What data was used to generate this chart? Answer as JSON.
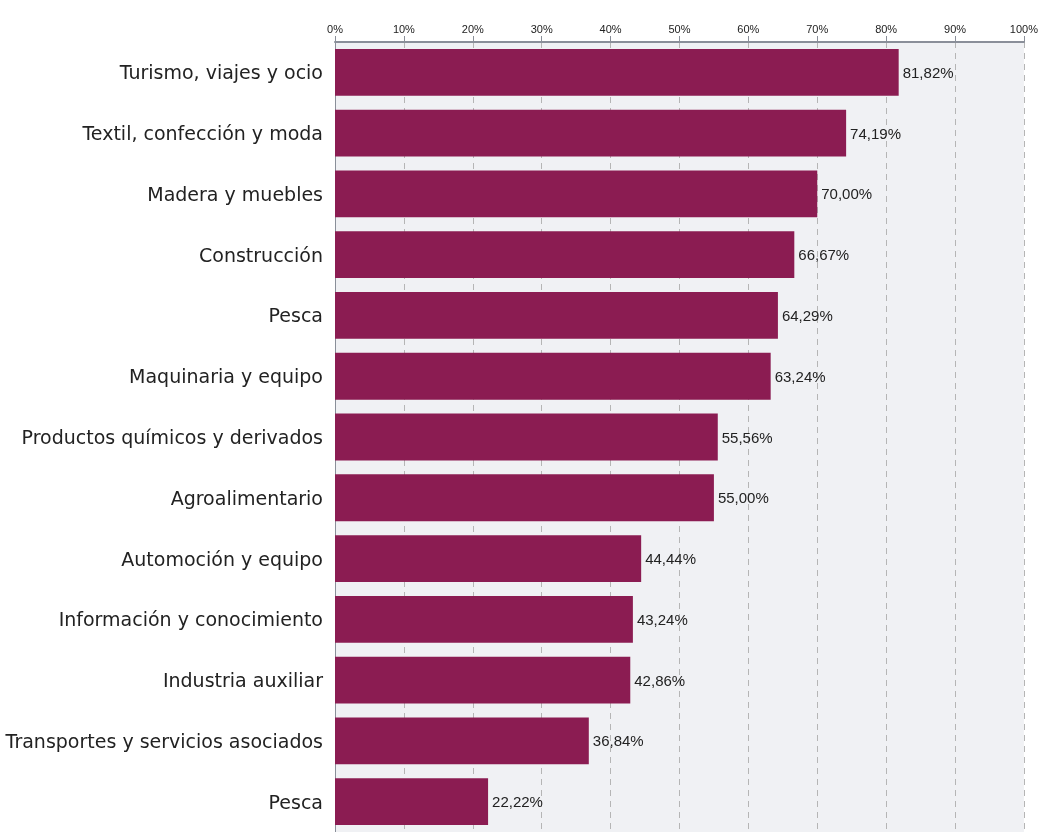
{
  "chart_data": {
    "type": "bar",
    "orientation": "horizontal",
    "color": "#8b1c52",
    "grid": "x",
    "categories": [
      "Turismo, viajes y ocio",
      "Textil, confección y moda",
      "Madera y muebles",
      "Construcción",
      "Pesca",
      "Maquinaria y equipo",
      "Productos químicos y derivados",
      "Agroalimentario",
      "Automoción y equipo",
      "Información y conocimiento",
      "Industria auxiliar",
      "Transportes y servicios asociados",
      "Pesca"
    ],
    "values": [
      81.82,
      74.19,
      70.0,
      66.67,
      64.29,
      63.24,
      55.56,
      55.0,
      44.44,
      43.24,
      42.86,
      36.84,
      22.22
    ],
    "value_labels": [
      "81,82%",
      "74,19%",
      "70,00%",
      "66,67%",
      "64,29%",
      "63,24%",
      "55,56%",
      "55,00%",
      "44,44%",
      "43,24%",
      "42,86%",
      "36,84%",
      "22,22%"
    ],
    "xlim": [
      0,
      100
    ],
    "xticks": [
      {
        "value": 0,
        "label": "0%"
      },
      {
        "value": 10,
        "label": "10%"
      },
      {
        "value": 20,
        "label": "20%"
      },
      {
        "value": 30,
        "label": "30%"
      },
      {
        "value": 40,
        "label": "40%"
      },
      {
        "value": 50,
        "label": "50%"
      },
      {
        "value": 60,
        "label": "60%"
      },
      {
        "value": 70,
        "label": "70%"
      },
      {
        "value": 80,
        "label": "80%"
      },
      {
        "value": 90,
        "label": "90%"
      },
      {
        "value": 100,
        "label": "100%"
      }
    ]
  }
}
